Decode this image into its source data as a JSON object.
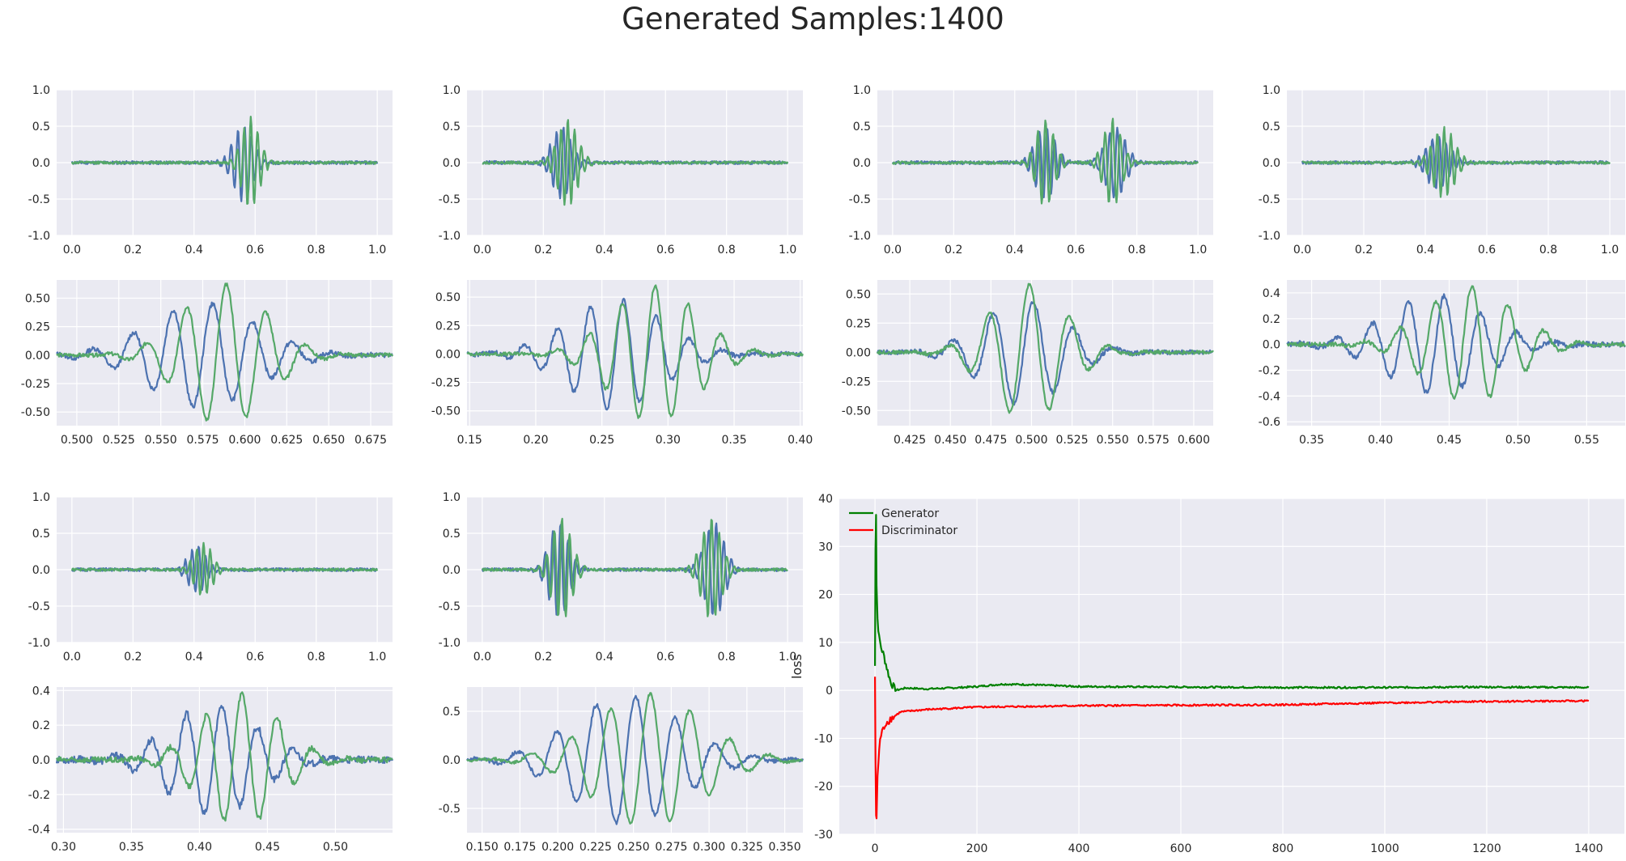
{
  "figure": {
    "title": "Generated Samples:1400"
  },
  "colors": {
    "series_a": "#4c72b0",
    "series_b": "#55a868",
    "generator": "#008000",
    "discriminator": "#ff0000",
    "axes_bg": "#eaeaf2",
    "grid": "#ffffff",
    "text": "#262626"
  },
  "chart_data": [
    {
      "type": "line",
      "panel": "row1-col1",
      "xlim": [
        -0.05,
        1.05
      ],
      "ylim": [
        -1.0,
        1.0
      ],
      "xticks": [
        "0.0",
        "0.2",
        "0.4",
        "0.6",
        "0.8",
        "1.0"
      ],
      "yticks": [
        "-1.0",
        "-0.5",
        "0.0",
        "0.5",
        "1.0"
      ],
      "series": [
        {
          "color": "#4c72b0",
          "centers": [
            0.56
          ],
          "amp": 0.52,
          "freq": 45,
          "width": 0.045,
          "phase": 0.0,
          "noise": 0.022,
          "seed": 11
        },
        {
          "color": "#55a868",
          "centers": [
            0.585
          ],
          "amp": 0.62,
          "freq": 45,
          "width": 0.04,
          "phase": 1.3,
          "noise": 0.018,
          "seed": 12
        }
      ]
    },
    {
      "type": "line",
      "panel": "row1-col2",
      "xlim": [
        -0.05,
        1.05
      ],
      "ylim": [
        -1.0,
        1.0
      ],
      "xticks": [
        "0.0",
        "0.2",
        "0.4",
        "0.6",
        "0.8",
        "1.0"
      ],
      "yticks": [
        "-1.0",
        "-0.5",
        "0.0",
        "0.5",
        "1.0"
      ],
      "series": [
        {
          "color": "#4c72b0",
          "centers": [
            0.26
          ],
          "amp": 0.5,
          "freq": 45,
          "width": 0.045,
          "phase": 0.0,
          "noise": 0.022,
          "seed": 21
        },
        {
          "color": "#55a868",
          "centers": [
            0.28
          ],
          "amp": 0.6,
          "freq": 45,
          "width": 0.045,
          "phase": 1.5,
          "noise": 0.018,
          "seed": 22
        }
      ]
    },
    {
      "type": "line",
      "panel": "row1-col3",
      "xlim": [
        -0.05,
        1.05
      ],
      "ylim": [
        -1.0,
        1.0
      ],
      "xticks": [
        "0.0",
        "0.2",
        "0.4",
        "0.6",
        "0.8",
        "1.0"
      ],
      "yticks": [
        "-1.0",
        "-0.5",
        "0.0",
        "0.5",
        "1.0"
      ],
      "series": [
        {
          "color": "#4c72b0",
          "centers": [
            0.5,
            0.73
          ],
          "amp": 0.5,
          "freq": 40,
          "width": 0.045,
          "phase": 0.0,
          "noise": 0.022,
          "seed": 31
        },
        {
          "color": "#55a868",
          "centers": [
            0.5,
            0.72
          ],
          "amp": 0.6,
          "freq": 40,
          "width": 0.04,
          "phase": 1.4,
          "noise": 0.018,
          "seed": 32
        }
      ]
    },
    {
      "type": "line",
      "panel": "row1-col4",
      "xlim": [
        -0.05,
        1.05
      ],
      "ylim": [
        -1.0,
        1.0
      ],
      "xticks": [
        "0.0",
        "0.2",
        "0.4",
        "0.6",
        "0.8",
        "1.0"
      ],
      "yticks": [
        "-1.0",
        "-0.5",
        "0.0",
        "0.5",
        "1.0"
      ],
      "series": [
        {
          "color": "#4c72b0",
          "centers": [
            0.44
          ],
          "amp": 0.38,
          "freq": 45,
          "width": 0.05,
          "phase": 0.0,
          "noise": 0.022,
          "seed": 41
        },
        {
          "color": "#55a868",
          "centers": [
            0.46
          ],
          "amp": 0.48,
          "freq": 45,
          "width": 0.05,
          "phase": 1.2,
          "noise": 0.018,
          "seed": 42
        }
      ]
    },
    {
      "type": "line",
      "panel": "row2-col1",
      "xlim": [
        0.488,
        0.688
      ],
      "ylim": [
        -0.62,
        0.66
      ],
      "xticks": [
        "0.500",
        "0.525",
        "0.550",
        "0.575",
        "0.600",
        "0.625",
        "0.650",
        "0.675"
      ],
      "yticks": [
        "-0.50",
        "-0.25",
        "0.00",
        "0.25",
        "0.50"
      ],
      "xtick_values": [
        0.5,
        0.525,
        0.55,
        0.575,
        0.6,
        0.625,
        0.65,
        0.675
      ],
      "ytick_values": [
        -0.5,
        -0.25,
        0,
        0.25,
        0.5
      ],
      "series": [
        {
          "color": "#4c72b0",
          "centers": [
            0.575
          ],
          "amp": 0.46,
          "freq": 42,
          "width": 0.045,
          "phase": 0.0,
          "noise": 0.02,
          "seed": 13
        },
        {
          "color": "#55a868",
          "centers": [
            0.588
          ],
          "amp": 0.62,
          "freq": 42,
          "width": 0.035,
          "phase": 1.3,
          "noise": 0.016,
          "seed": 14
        }
      ]
    },
    {
      "type": "line",
      "panel": "row2-col2",
      "xlim": [
        0.148,
        0.402
      ],
      "ylim": [
        -0.63,
        0.65
      ],
      "xticks": [
        "0.15",
        "0.20",
        "0.25",
        "0.30",
        "0.35",
        "0.40"
      ],
      "yticks": [
        "-0.50",
        "-0.25",
        "0.00",
        "0.25",
        "0.50"
      ],
      "xtick_values": [
        0.15,
        0.2,
        0.25,
        0.3,
        0.35,
        0.4
      ],
      "ytick_values": [
        -0.5,
        -0.25,
        0,
        0.25,
        0.5
      ],
      "series": [
        {
          "color": "#4c72b0",
          "centers": [
            0.26
          ],
          "amp": 0.48,
          "freq": 40,
          "width": 0.05,
          "phase": 0.0,
          "noise": 0.02,
          "seed": 23
        },
        {
          "color": "#55a868",
          "centers": [
            0.29
          ],
          "amp": 0.6,
          "freq": 40,
          "width": 0.045,
          "phase": 1.5,
          "noise": 0.016,
          "seed": 24
        }
      ]
    },
    {
      "type": "line",
      "panel": "row2-col3",
      "xlim": [
        0.405,
        0.612
      ],
      "ylim": [
        -0.63,
        0.62
      ],
      "xticks": [
        "0.425",
        "0.450",
        "0.475",
        "0.500",
        "0.525",
        "0.550",
        "0.575",
        "0.600"
      ],
      "yticks": [
        "-0.50",
        "-0.25",
        "0.00",
        "0.25",
        "0.50"
      ],
      "xtick_values": [
        0.425,
        0.45,
        0.475,
        0.5,
        0.525,
        0.55,
        0.575,
        0.6
      ],
      "ytick_values": [
        -0.5,
        -0.25,
        0,
        0.25,
        0.5
      ],
      "series": [
        {
          "color": "#4c72b0",
          "centers": [
            0.495
          ],
          "amp": 0.45,
          "freq": 40,
          "width": 0.035,
          "phase": 0.0,
          "noise": 0.02,
          "seed": 33
        },
        {
          "color": "#55a868",
          "centers": [
            0.498
          ],
          "amp": 0.58,
          "freq": 40,
          "width": 0.032,
          "phase": 1.4,
          "noise": 0.016,
          "seed": 34
        }
      ]
    },
    {
      "type": "line",
      "panel": "row2-col4",
      "xlim": [
        0.332,
        0.578
      ],
      "ylim": [
        -0.63,
        0.5
      ],
      "xticks": [
        "0.35",
        "0.40",
        "0.45",
        "0.50",
        "0.55"
      ],
      "yticks": [
        "-0.6",
        "-0.4",
        "-0.2",
        "0.0",
        "0.2",
        "0.4"
      ],
      "xtick_values": [
        0.35,
        0.4,
        0.45,
        0.5,
        0.55
      ],
      "ytick_values": [
        -0.6,
        -0.4,
        -0.2,
        0,
        0.2,
        0.4
      ],
      "series": [
        {
          "color": "#4c72b0",
          "centers": [
            0.44
          ],
          "amp": 0.38,
          "freq": 38,
          "width": 0.05,
          "phase": 0.0,
          "noise": 0.02,
          "seed": 43
        },
        {
          "color": "#55a868",
          "centers": [
            0.465
          ],
          "amp": 0.45,
          "freq": 38,
          "width": 0.045,
          "phase": 1.2,
          "noise": 0.016,
          "seed": 44
        }
      ]
    },
    {
      "type": "line",
      "panel": "row3-col1",
      "xlim": [
        -0.05,
        1.05
      ],
      "ylim": [
        -1.0,
        1.0
      ],
      "xticks": [
        "0.0",
        "0.2",
        "0.4",
        "0.6",
        "0.8",
        "1.0"
      ],
      "yticks": [
        "-1.0",
        "-0.5",
        "0.0",
        "0.5",
        "1.0"
      ],
      "series": [
        {
          "color": "#4c72b0",
          "centers": [
            0.41
          ],
          "amp": 0.32,
          "freq": 45,
          "width": 0.04,
          "phase": 0.0,
          "noise": 0.022,
          "seed": 51
        },
        {
          "color": "#55a868",
          "centers": [
            0.43
          ],
          "amp": 0.38,
          "freq": 45,
          "width": 0.04,
          "phase": 1.3,
          "noise": 0.018,
          "seed": 52
        }
      ]
    },
    {
      "type": "line",
      "panel": "row3-col2",
      "xlim": [
        -0.05,
        1.05
      ],
      "ylim": [
        -1.0,
        1.0
      ],
      "xticks": [
        "0.0",
        "0.2",
        "0.4",
        "0.6",
        "0.8",
        "1.0"
      ],
      "yticks": [
        "-1.0",
        "-0.5",
        "0.0",
        "0.5",
        "1.0"
      ],
      "series": [
        {
          "color": "#4c72b0",
          "centers": [
            0.25,
            0.76
          ],
          "amp": 0.65,
          "freq": 40,
          "width": 0.045,
          "phase": 0.0,
          "noise": 0.022,
          "seed": 61
        },
        {
          "color": "#55a868",
          "centers": [
            0.26,
            0.75
          ],
          "amp": 0.7,
          "freq": 40,
          "width": 0.045,
          "phase": 1.3,
          "noise": 0.018,
          "seed": 62
        }
      ]
    },
    {
      "type": "line",
      "panel": "row4-col1",
      "xlim": [
        0.295,
        0.542
      ],
      "ylim": [
        -0.42,
        0.42
      ],
      "xticks": [
        "0.30",
        "0.35",
        "0.40",
        "0.45",
        "0.50"
      ],
      "yticks": [
        "-0.4",
        "-0.2",
        "0.0",
        "0.2",
        "0.4"
      ],
      "xtick_values": [
        0.3,
        0.35,
        0.4,
        0.45,
        0.5
      ],
      "ytick_values": [
        -0.4,
        -0.2,
        0,
        0.2,
        0.4
      ],
      "series": [
        {
          "color": "#4c72b0",
          "centers": [
            0.41
          ],
          "amp": 0.32,
          "freq": 38,
          "width": 0.045,
          "phase": 0.0,
          "noise": 0.02,
          "seed": 53
        },
        {
          "color": "#55a868",
          "centers": [
            0.43
          ],
          "amp": 0.38,
          "freq": 38,
          "width": 0.04,
          "phase": 1.3,
          "noise": 0.016,
          "seed": 54
        }
      ]
    },
    {
      "type": "line",
      "panel": "row4-col2",
      "xlim": [
        0.14,
        0.362
      ],
      "ylim": [
        -0.75,
        0.75
      ],
      "xticks": [
        "0.150",
        "0.175",
        "0.200",
        "0.225",
        "0.250",
        "0.275",
        "0.300",
        "0.325",
        "0.350"
      ],
      "yticks": [
        "-0.5",
        "0.0",
        "0.5"
      ],
      "xtick_values": [
        0.15,
        0.175,
        0.2,
        0.225,
        0.25,
        0.275,
        0.3,
        0.325,
        0.35
      ],
      "ytick_values": [
        -0.5,
        0,
        0.5
      ],
      "series": [
        {
          "color": "#4c72b0",
          "centers": [
            0.245
          ],
          "amp": 0.66,
          "freq": 38,
          "width": 0.05,
          "phase": 0.0,
          "noise": 0.02,
          "seed": 63
        },
        {
          "color": "#55a868",
          "centers": [
            0.26
          ],
          "amp": 0.68,
          "freq": 38,
          "width": 0.05,
          "phase": 1.3,
          "noise": 0.016,
          "seed": 64
        }
      ]
    },
    {
      "type": "line",
      "panel": "loss",
      "xlim": [
        -70,
        1470
      ],
      "ylim": [
        -30,
        40
      ],
      "xticks": [
        "0",
        "200",
        "400",
        "600",
        "800",
        "1000",
        "1200",
        "1400"
      ],
      "xtick_values": [
        0,
        200,
        400,
        600,
        800,
        1000,
        1200,
        1400
      ],
      "yticks": [
        "-30",
        "-20",
        "-10",
        "0",
        "10",
        "20",
        "30",
        "40"
      ],
      "ytick_values": [
        -30,
        -20,
        -10,
        0,
        10,
        20,
        30,
        40
      ],
      "ylabel": "loss",
      "legend_position": "top-left",
      "series": [
        {
          "name": "Generator",
          "color": "#008000",
          "points": [
            [
              0,
              5
            ],
            [
              1,
              30
            ],
            [
              2,
              37
            ],
            [
              3,
              22
            ],
            [
              5,
              15
            ],
            [
              8,
              11
            ],
            [
              12,
              9
            ],
            [
              18,
              7
            ],
            [
              25,
              4
            ],
            [
              30,
              2
            ],
            [
              40,
              0
            ],
            [
              60,
              0.5
            ],
            [
              100,
              0.3
            ],
            [
              150,
              0.5
            ],
            [
              200,
              0.8
            ],
            [
              250,
              1.3
            ],
            [
              300,
              1.2
            ],
            [
              400,
              0.8
            ],
            [
              600,
              0.7
            ],
            [
              800,
              0.6
            ],
            [
              1000,
              0.6
            ],
            [
              1200,
              0.7
            ],
            [
              1400,
              0.6
            ]
          ]
        },
        {
          "name": "Discriminator",
          "color": "#ff0000",
          "points": [
            [
              0,
              3
            ],
            [
              1,
              -15
            ],
            [
              2,
              -26
            ],
            [
              3,
              -26.5
            ],
            [
              5,
              -18
            ],
            [
              10,
              -10
            ],
            [
              20,
              -7
            ],
            [
              30,
              -6
            ],
            [
              50,
              -4.5
            ],
            [
              100,
              -4
            ],
            [
              200,
              -3.5
            ],
            [
              400,
              -3.2
            ],
            [
              600,
              -3.1
            ],
            [
              800,
              -3.0
            ],
            [
              1000,
              -2.6
            ],
            [
              1200,
              -2.3
            ],
            [
              1400,
              -2.2
            ]
          ]
        }
      ]
    }
  ]
}
